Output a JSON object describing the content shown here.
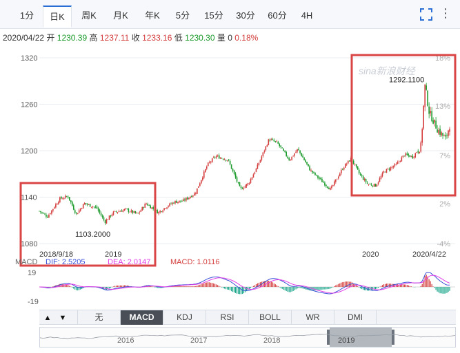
{
  "tabs": [
    {
      "label": "1分",
      "active": false
    },
    {
      "label": "日K",
      "active": true
    },
    {
      "label": "周K",
      "active": false
    },
    {
      "label": "月K",
      "active": false
    },
    {
      "label": "年K",
      "active": false
    },
    {
      "label": "5分",
      "active": false
    },
    {
      "label": "15分",
      "active": false
    },
    {
      "label": "30分",
      "active": false
    },
    {
      "label": "60分",
      "active": false
    },
    {
      "label": "4H",
      "active": false
    }
  ],
  "info": {
    "date": "2020/04/22",
    "open_label": "开",
    "open": "1230.39",
    "high_label": "高",
    "high": "1237.11",
    "close_label": "收",
    "close": "1233.16",
    "low_label": "低",
    "low": "1230.30",
    "vol_label": "量",
    "vol": "0",
    "change": "0.18%"
  },
  "macd_info": {
    "title": "MACD",
    "dif_label": "DIF: 2.5205",
    "dea_label": "DEA: 2.0147",
    "macd_label": "MACD: 1.0116"
  },
  "indicator_tabs": [
    "无",
    "MACD",
    "KDJ",
    "RSI",
    "BOLL",
    "WR",
    "DMI"
  ],
  "indicator_active": "MACD",
  "watermark": "sina新浪财经",
  "colors": {
    "up": "#d43c3c",
    "down": "#1a9a2a",
    "dif": "#e23ee6",
    "dea": "#3a4fd8",
    "box": "#d94545",
    "grid": "#e9ecf1"
  },
  "chart_data": {
    "type": "candlestick",
    "price_ylim": [
      1080,
      1320
    ],
    "y_ticks": [
      1080,
      1140,
      1200,
      1260,
      1320
    ],
    "pct_ticks": [
      "-4%",
      "2%",
      "7%",
      "13%",
      "18%"
    ],
    "x_labels": [
      "2018/9/18",
      "2019",
      "2020",
      "2020/4/22"
    ],
    "x_label_positions": [
      0.0,
      0.2,
      0.86,
      1.0
    ],
    "close_path": [
      [
        0.0,
        1122
      ],
      [
        0.02,
        1115
      ],
      [
        0.05,
        1138
      ],
      [
        0.07,
        1141
      ],
      [
        0.09,
        1118
      ],
      [
        0.11,
        1132
      ],
      [
        0.14,
        1126
      ],
      [
        0.16,
        1108
      ],
      [
        0.18,
        1120
      ],
      [
        0.21,
        1124
      ],
      [
        0.24,
        1118
      ],
      [
        0.26,
        1132
      ],
      [
        0.29,
        1120
      ],
      [
        0.31,
        1128
      ],
      [
        0.33,
        1134
      ],
      [
        0.35,
        1135
      ],
      [
        0.38,
        1145
      ],
      [
        0.41,
        1182
      ],
      [
        0.43,
        1193
      ],
      [
        0.46,
        1188
      ],
      [
        0.49,
        1150
      ],
      [
        0.51,
        1158
      ],
      [
        0.53,
        1178
      ],
      [
        0.56,
        1215
      ],
      [
        0.58,
        1210
      ],
      [
        0.61,
        1188
      ],
      [
        0.63,
        1202
      ],
      [
        0.66,
        1175
      ],
      [
        0.69,
        1160
      ],
      [
        0.71,
        1150
      ],
      [
        0.74,
        1178
      ],
      [
        0.76,
        1190
      ],
      [
        0.78,
        1170
      ],
      [
        0.8,
        1157
      ],
      [
        0.82,
        1155
      ],
      [
        0.84,
        1173
      ],
      [
        0.87,
        1182
      ],
      [
        0.89,
        1195
      ],
      [
        0.91,
        1192
      ],
      [
        0.93,
        1206
      ],
      [
        0.94,
        1285
      ],
      [
        0.95,
        1250
      ],
      [
        0.97,
        1228
      ],
      [
        0.99,
        1215
      ],
      [
        1.0,
        1233
      ]
    ],
    "macd_ylim": [
      -19,
      19
    ],
    "macd_ticks": [
      19,
      -19
    ],
    "annotations": [
      {
        "text": "1292.1100",
        "x": 0.953,
        "y": 1292.11
      },
      {
        "text": "1103.2000",
        "x": 0.205,
        "y": 1103.2
      }
    ],
    "navigator_labels": [
      "2016",
      "2017",
      "2018",
      "2019"
    ]
  }
}
